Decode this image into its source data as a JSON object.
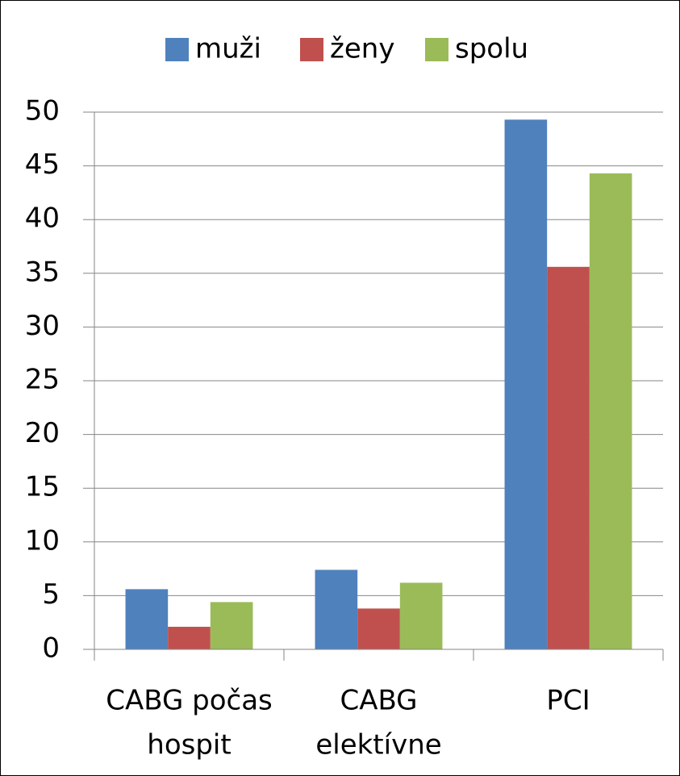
{
  "chart_data": {
    "type": "bar",
    "categories": [
      [
        "CABG počas",
        "hospit"
      ],
      [
        "CABG",
        "elektívne"
      ],
      [
        "PCI"
      ]
    ],
    "series": [
      {
        "name": "muži",
        "color": "#4f81bd",
        "values": [
          5.6,
          7.4,
          49.3
        ]
      },
      {
        "name": "ženy",
        "color": "#c0504d",
        "values": [
          2.1,
          3.8,
          35.6
        ]
      },
      {
        "name": "spolu",
        "color": "#9bbb59",
        "values": [
          4.4,
          6.2,
          44.3
        ]
      }
    ],
    "ylim": [
      0,
      50
    ],
    "yticks": [
      0,
      5,
      10,
      15,
      20,
      25,
      30,
      35,
      40,
      45,
      50
    ],
    "grid": true,
    "legend": "top"
  }
}
